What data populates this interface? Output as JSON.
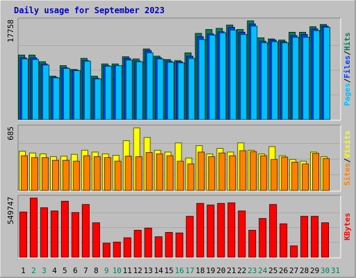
{
  "title": "Daily usage for September 2023",
  "colors": {
    "background": "#c0c0c0",
    "plot_bg": "#bebebe",
    "title": "#0000c0",
    "hits": "#00805c",
    "files": "#0040ff",
    "pages": "#00c0ff",
    "visits": "#ffff00",
    "sites": "#ff8000",
    "kbytes": "#ff0000",
    "weekend_label": "#00805c"
  },
  "chart_data": [
    {
      "type": "bar",
      "name": "hits-files-pages",
      "categories": [
        "1",
        "2",
        "3",
        "4",
        "5",
        "6",
        "7",
        "8",
        "9",
        "10",
        "11",
        "12",
        "13",
        "14",
        "15",
        "16",
        "17",
        "18",
        "19",
        "20",
        "21",
        "22",
        "23",
        "24",
        "25",
        "26",
        "27",
        "28",
        "29",
        "30",
        "31"
      ],
      "weekend_days": [
        "2",
        "3",
        "9",
        "10",
        "16",
        "17",
        "23",
        "24",
        "30",
        "31"
      ],
      "ymax_label": "17758",
      "ymax": 17758,
      "axis_legend": [
        {
          "text": "Pages",
          "key": "pages"
        },
        {
          "text": "/",
          "key": "sep"
        },
        {
          "text": "Files",
          "key": "files"
        },
        {
          "text": "/",
          "key": "sep"
        },
        {
          "text": "Hits",
          "key": "hits"
        }
      ],
      "series": [
        {
          "key": "hits",
          "values": [
            11600,
            11600,
            10400,
            7800,
            9700,
            9000,
            11000,
            7800,
            10000,
            10000,
            11300,
            10900,
            12700,
            11400,
            10800,
            10600,
            12000,
            15500,
            16200,
            16400,
            17000,
            16200,
            17758,
            14700,
            14500,
            14300,
            15700,
            15700,
            16700,
            17100,
            null
          ]
        },
        {
          "key": "files",
          "values": [
            11100,
            11100,
            10000,
            7600,
            9300,
            8900,
            10600,
            7400,
            9700,
            9700,
            11000,
            10500,
            12400,
            11100,
            10500,
            10400,
            11400,
            14900,
            15400,
            15800,
            16600,
            15700,
            17200,
            14100,
            14300,
            14000,
            15100,
            15300,
            16300,
            16800,
            null
          ]
        },
        {
          "key": "pages",
          "values": [
            10900,
            10800,
            9800,
            7500,
            9200,
            8800,
            10500,
            7300,
            9600,
            9700,
            10700,
            10400,
            12000,
            10900,
            10300,
            10200,
            11000,
            14400,
            15200,
            15600,
            16100,
            15300,
            16800,
            13800,
            14000,
            13800,
            14800,
            14800,
            16000,
            16600,
            null
          ]
        }
      ]
    },
    {
      "type": "bar",
      "name": "visits-sites",
      "ymax_label": "685",
      "ymax": 685,
      "axis_legend": [
        {
          "text": "Sites",
          "key": "sites"
        },
        {
          "text": "/",
          "key": "sep"
        },
        {
          "text": "Visits",
          "key": "visits"
        }
      ],
      "series": [
        {
          "key": "visits",
          "values": [
            430,
            410,
            400,
            370,
            375,
            395,
            440,
            420,
            400,
            385,
            545,
            685,
            580,
            440,
            420,
            520,
            355,
            490,
            400,
            460,
            420,
            520,
            440,
            400,
            480,
            380,
            340,
            320,
            420,
            370,
            null
          ]
        },
        {
          "key": "sites",
          "values": [
            380,
            360,
            360,
            330,
            330,
            320,
            380,
            370,
            360,
            320,
            375,
            370,
            415,
            400,
            380,
            320,
            290,
            420,
            370,
            410,
            380,
            435,
            425,
            380,
            340,
            365,
            310,
            290,
            405,
            350,
            null
          ]
        }
      ]
    },
    {
      "type": "bar",
      "name": "kbytes",
      "ymax_label": "549747",
      "ymax": 549747,
      "axis_legend": [
        {
          "text": "KBytes",
          "key": "kbytes"
        }
      ],
      "series": [
        {
          "key": "kbytes",
          "values": [
            420000,
            549747,
            460000,
            430000,
            520000,
            415000,
            490000,
            320000,
            130000,
            140000,
            180000,
            250000,
            270000,
            190000,
            230000,
            225000,
            380000,
            500000,
            485000,
            500000,
            505000,
            430000,
            250000,
            360000,
            490000,
            310000,
            105000,
            380000,
            380000,
            320000,
            null
          ]
        }
      ]
    }
  ]
}
